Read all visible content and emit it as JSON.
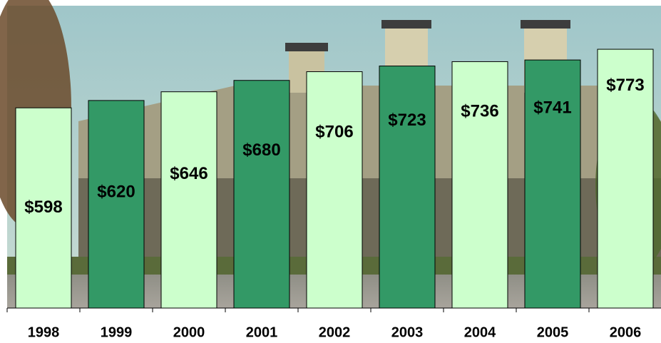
{
  "chart_data": {
    "type": "bar",
    "categories": [
      "1998",
      "1999",
      "2000",
      "2001",
      "2002",
      "2003",
      "2004",
      "2005",
      "2006"
    ],
    "values": [
      598,
      620,
      646,
      680,
      706,
      723,
      736,
      741,
      773
    ],
    "value_labels": [
      "$598",
      "$620",
      "$646",
      "$680",
      "$706",
      "$723",
      "$736",
      "$741",
      "$773"
    ],
    "colors": [
      "#ccffcc",
      "#339966",
      "#ccffcc",
      "#339966",
      "#ccffcc",
      "#339966",
      "#ccffcc",
      "#339966",
      "#ccffcc"
    ]
  }
}
